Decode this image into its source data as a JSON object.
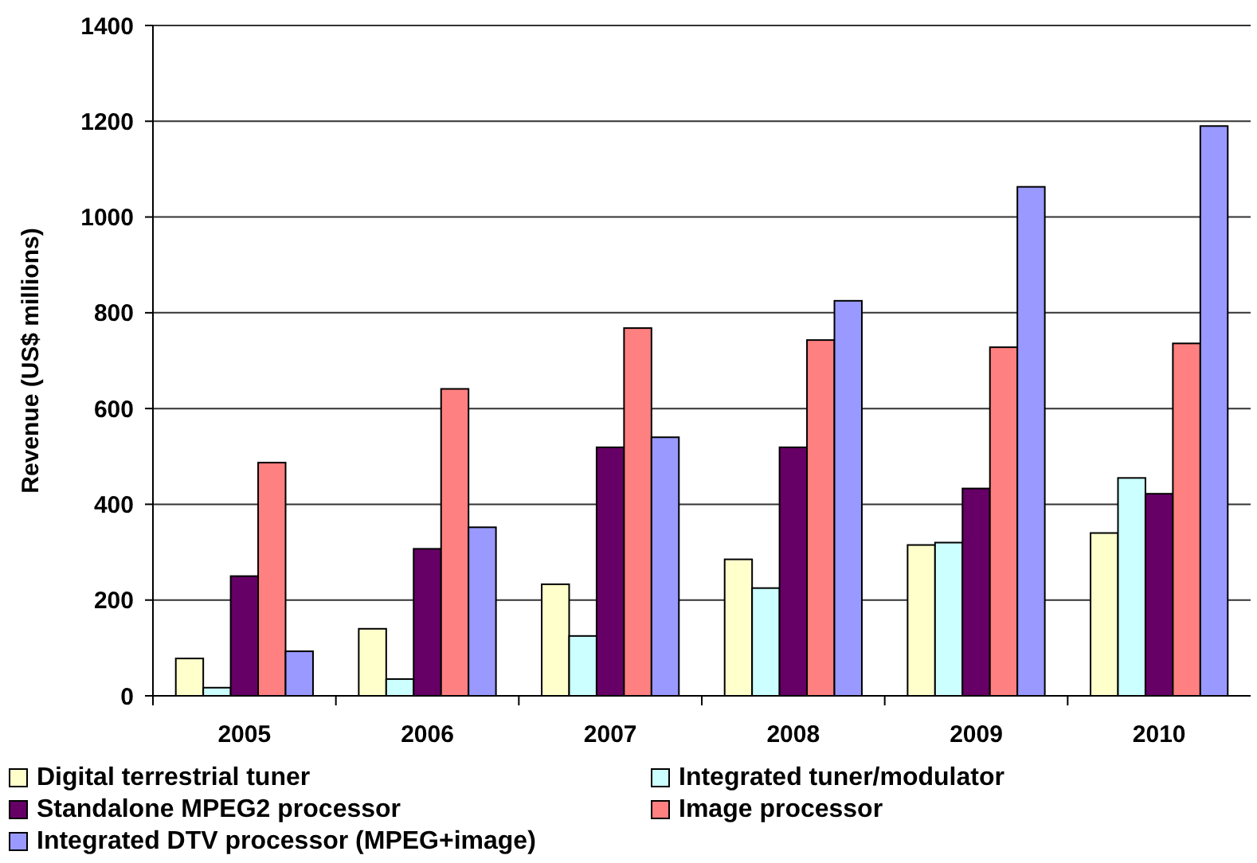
{
  "chart_data": {
    "type": "bar",
    "ylabel": "Revenue (US$ millions)",
    "categories": [
      "2005",
      "2006",
      "2007",
      "2008",
      "2009",
      "2010"
    ],
    "series": [
      {
        "name": "Digital terrestrial tuner",
        "color": "#ffffcc",
        "values": [
          78,
          140,
          233,
          285,
          315,
          340
        ]
      },
      {
        "name": "Integrated tuner/modulator",
        "color": "#ccffff",
        "values": [
          17,
          35,
          125,
          225,
          320,
          455
        ]
      },
      {
        "name": "Standalone MPEG2 processor",
        "color": "#660066",
        "values": [
          250,
          307,
          519,
          519,
          433,
          422
        ]
      },
      {
        "name": "Image processor",
        "color": "#ff8080",
        "values": [
          487,
          641,
          768,
          743,
          728,
          736
        ]
      },
      {
        "name": "Integrated DTV processor (MPEG+image)",
        "color": "#9999ff",
        "values": [
          93,
          352,
          540,
          825,
          1063,
          1190
        ]
      }
    ],
    "ylim": [
      0,
      1400
    ],
    "yticks": [
      0,
      200,
      400,
      600,
      800,
      1000,
      1200,
      1400
    ],
    "grid": "y",
    "legend": "bottom"
  }
}
